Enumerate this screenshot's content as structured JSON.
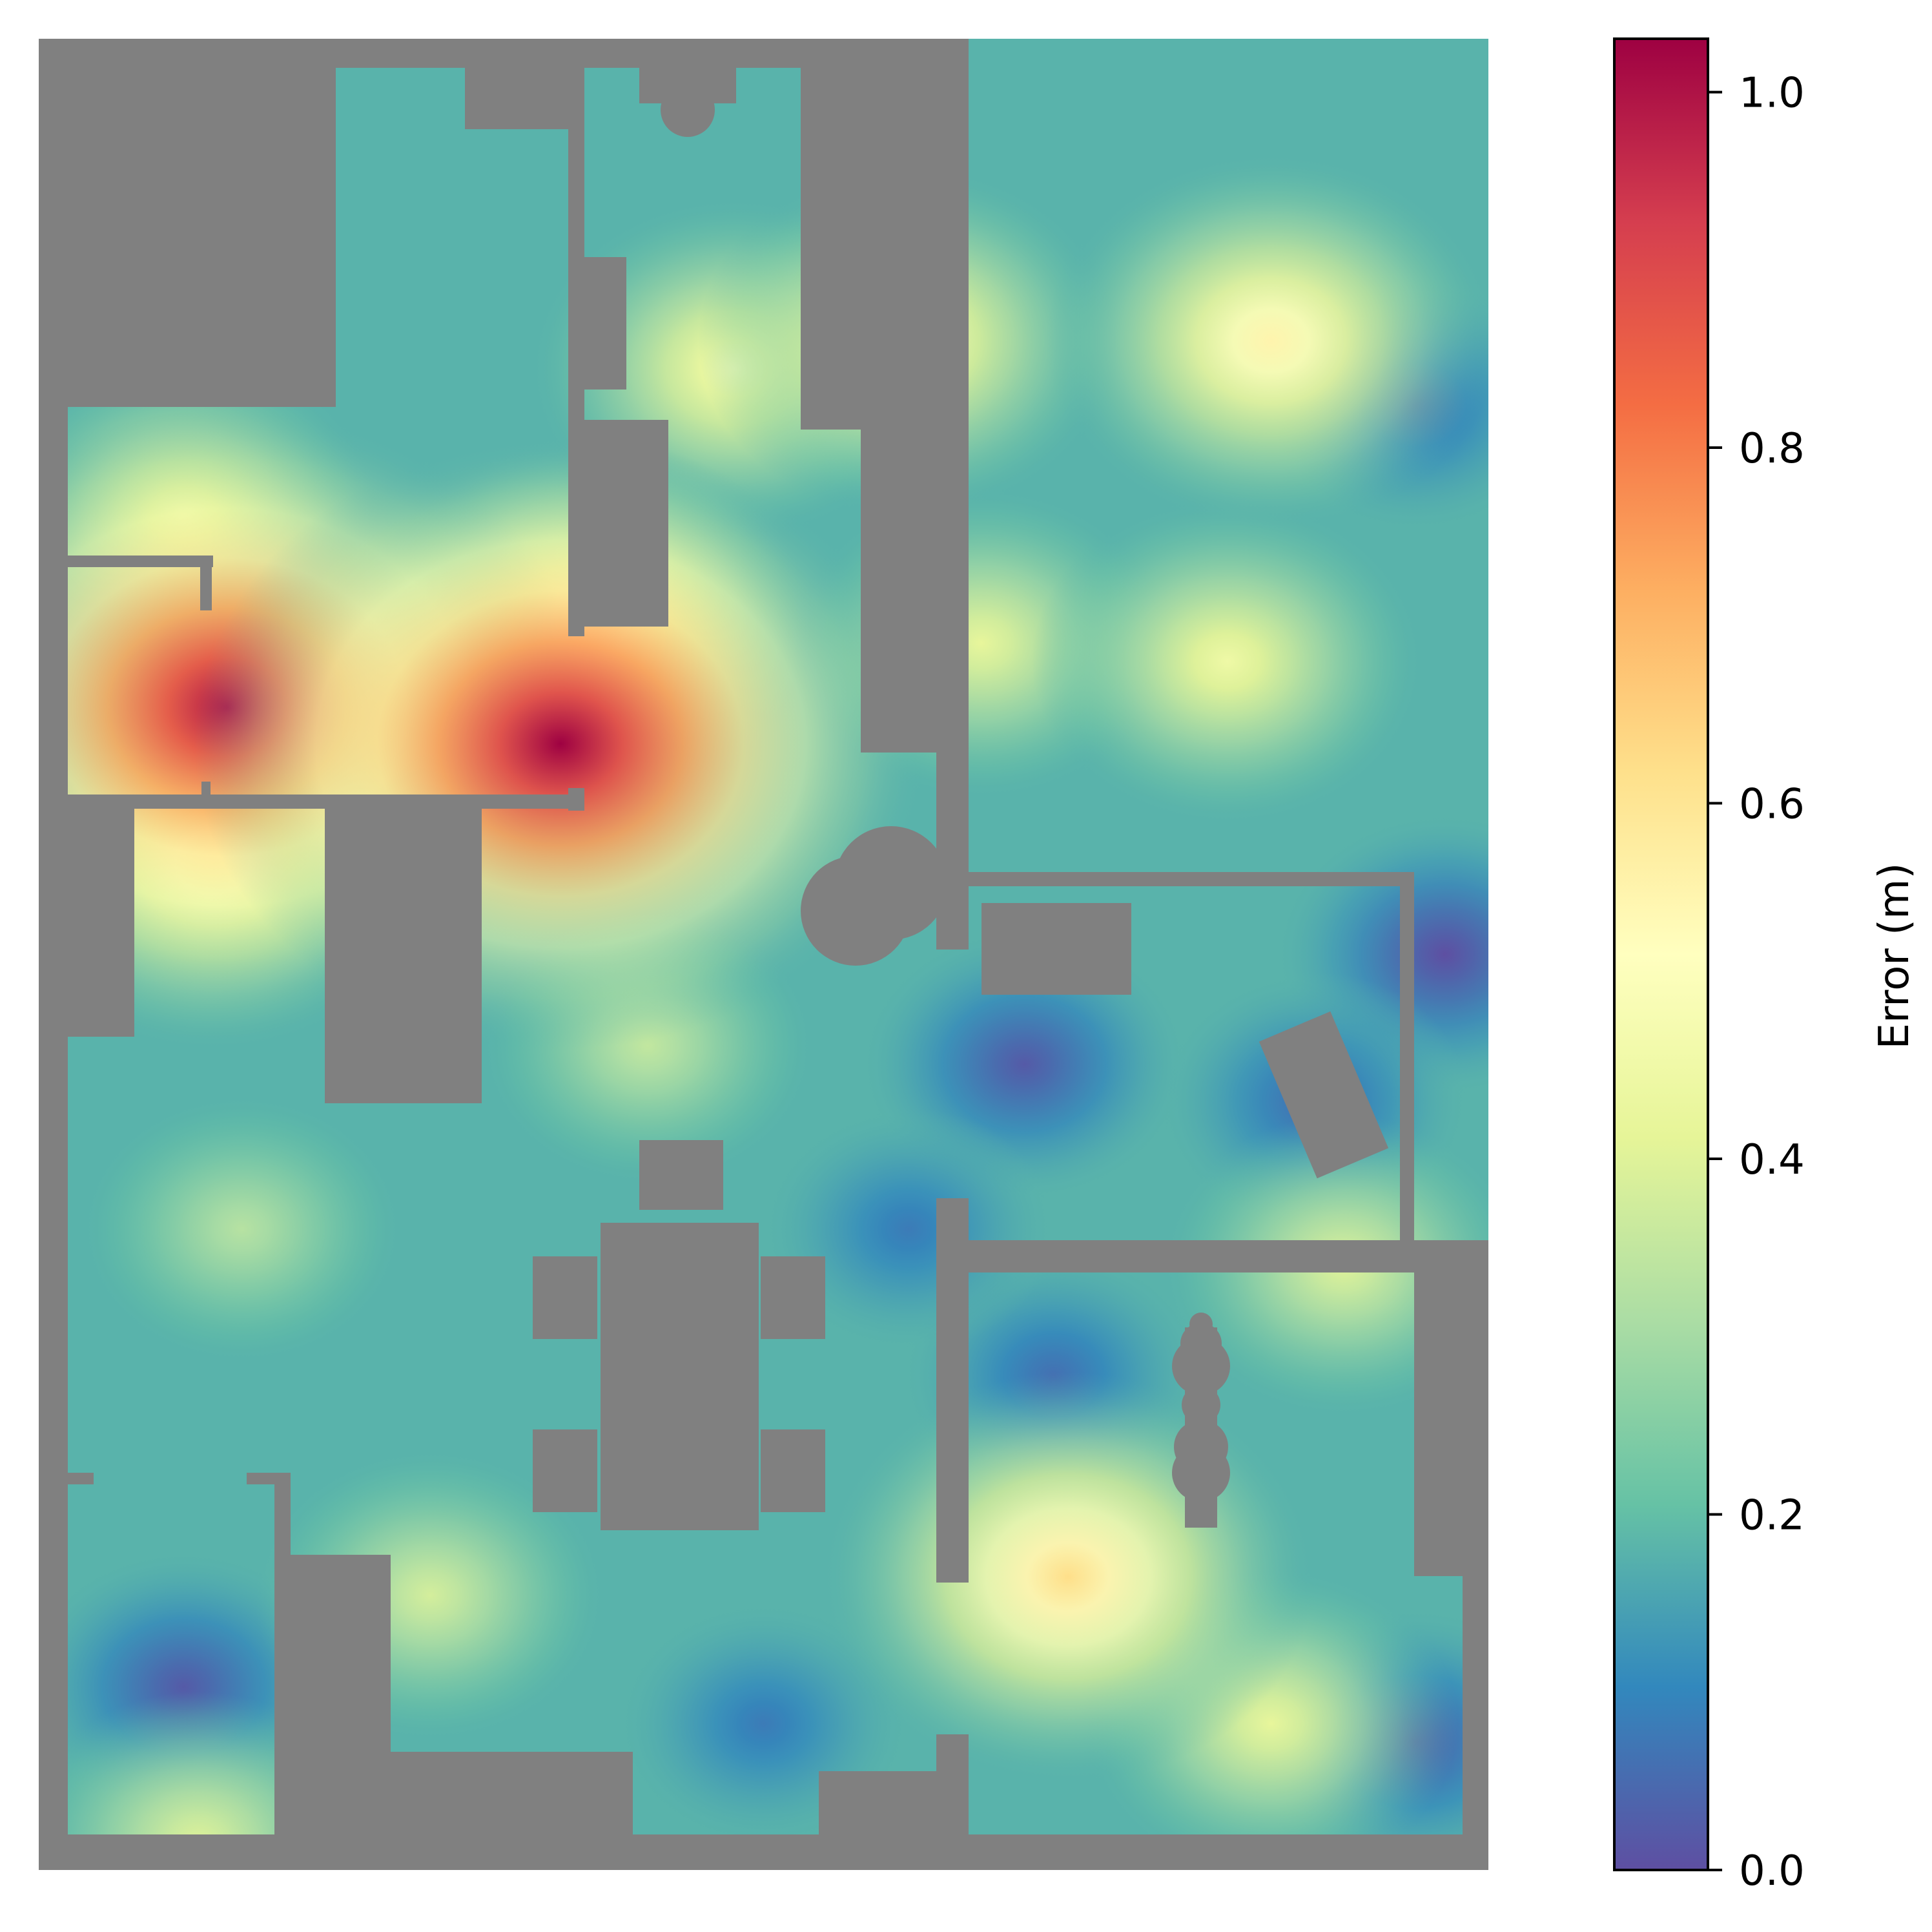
{
  "chart_data": {
    "type": "heatmap",
    "title": "",
    "xlabel": "",
    "ylabel": "",
    "colormap": "Spectral_r",
    "colorbar": {
      "label": "Error (m)",
      "range": [
        0.0,
        1.03
      ],
      "ticks": [
        0.0,
        0.2,
        0.4,
        0.6,
        0.8,
        1.0
      ],
      "tick_labels": [
        "0.0",
        "0.2",
        "0.4",
        "0.6",
        "0.8",
        "1.0"
      ],
      "colors": [
        "#5e4fa2",
        "#3288bd",
        "#66c2a5",
        "#abdda4",
        "#e6f598",
        "#ffffbf",
        "#fee08b",
        "#fdae61",
        "#f46d43",
        "#d53e4f",
        "#9e0142"
      ]
    },
    "obstacle_color": "#808080",
    "base_error": 0.18,
    "error_peaks": [
      {
        "x": 0.13,
        "y": 0.365,
        "error": 1.0
      },
      {
        "x": 0.36,
        "y": 0.385,
        "error": 1.03
      },
      {
        "x": 0.38,
        "y": 0.32,
        "error": 0.55
      },
      {
        "x": 0.1,
        "y": 0.26,
        "error": 0.45
      },
      {
        "x": 0.12,
        "y": 0.45,
        "error": 0.55
      },
      {
        "x": 0.48,
        "y": 0.18,
        "error": 0.48
      },
      {
        "x": 0.6,
        "y": 0.165,
        "error": 0.5
      },
      {
        "x": 0.85,
        "y": 0.165,
        "error": 0.55
      },
      {
        "x": 0.82,
        "y": 0.34,
        "error": 0.45
      },
      {
        "x": 0.65,
        "y": 0.33,
        "error": 0.42
      },
      {
        "x": 0.42,
        "y": 0.55,
        "error": 0.35
      },
      {
        "x": 0.14,
        "y": 0.65,
        "error": 0.33
      },
      {
        "x": 0.27,
        "y": 0.85,
        "error": 0.38
      },
      {
        "x": 0.71,
        "y": 0.84,
        "error": 0.62
      },
      {
        "x": 0.85,
        "y": 0.92,
        "error": 0.42
      },
      {
        "x": 0.9,
        "y": 0.67,
        "error": 0.4
      },
      {
        "x": 0.11,
        "y": 0.985,
        "error": 0.4
      },
      {
        "x": 0.68,
        "y": 0.56,
        "error": 0.02
      },
      {
        "x": 0.88,
        "y": 0.58,
        "error": 0.05
      },
      {
        "x": 0.97,
        "y": 0.5,
        "error": 0.0
      },
      {
        "x": 0.95,
        "y": 0.2,
        "error": 0.06
      },
      {
        "x": 0.1,
        "y": 0.9,
        "error": 0.02
      },
      {
        "x": 0.95,
        "y": 0.93,
        "error": 0.03
      },
      {
        "x": 0.7,
        "y": 0.73,
        "error": 0.06
      },
      {
        "x": 0.5,
        "y": 0.92,
        "error": 0.08
      },
      {
        "x": 0.6,
        "y": 0.65,
        "error": 0.08
      }
    ]
  }
}
